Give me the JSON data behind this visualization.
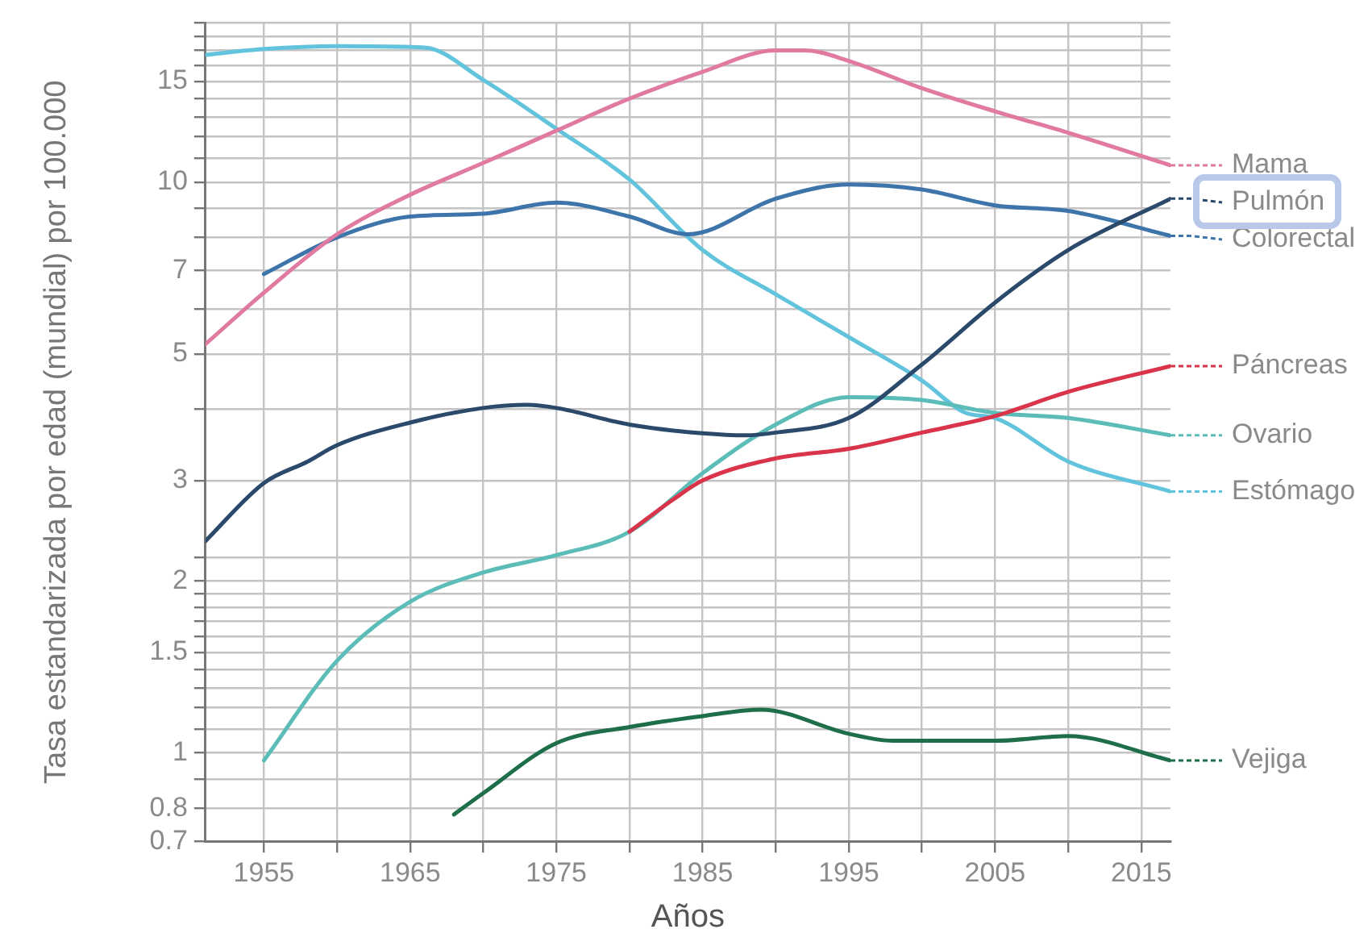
{
  "chart_data": {
    "type": "line",
    "xlabel": "Años",
    "ylabel": "Tasa estandarizada por edad (mundial) por 100.000",
    "log": "y",
    "grid": true,
    "legend": "right",
    "marker": "none",
    "line_style": "solid",
    "xlim": [
      1951,
      2017
    ],
    "xticks": [
      1955,
      {
        "value": 1960,
        "label": null
      },
      1965,
      {
        "value": 1970,
        "label": null
      },
      1975,
      {
        "value": 1980,
        "label": null
      },
      1985,
      {
        "value": 1990,
        "label": null
      },
      1995,
      {
        "value": 2000,
        "label": null
      },
      2005,
      {
        "value": 2010,
        "label": null
      },
      2015
    ],
    "ylim": [
      0.7,
      19
    ],
    "yticks": [
      0.7,
      0.8,
      {
        "value": 0.9,
        "label": null
      },
      1,
      {
        "value": 1.1,
        "label": null
      },
      {
        "value": 1.2,
        "label": null
      },
      {
        "value": 1.3,
        "label": null
      },
      {
        "value": 1.4,
        "label": null
      },
      1.5,
      {
        "value": 1.6,
        "label": null
      },
      {
        "value": 1.7,
        "label": null
      },
      {
        "value": 1.8,
        "label": null
      },
      {
        "value": 1.9,
        "label": null
      },
      2,
      {
        "value": 2.2,
        "label": null
      },
      3,
      {
        "value": 4,
        "label": null
      },
      5,
      {
        "value": 6,
        "label": null
      },
      7,
      {
        "value": 8,
        "label": null
      },
      {
        "value": 9,
        "label": null
      },
      10,
      {
        "value": 11,
        "label": null
      },
      {
        "value": 12,
        "label": null
      },
      {
        "value": 13,
        "label": null
      },
      {
        "value": 14,
        "label": null
      },
      15,
      {
        "value": 16,
        "label": null
      },
      {
        "value": 17,
        "label": null
      },
      {
        "value": 18,
        "label": null
      },
      {
        "value": 19,
        "label": null
      }
    ],
    "series": [
      {
        "name": "Mama",
        "color": "#e07aa0",
        "x": [
          1951,
          1955,
          1960,
          1965,
          1970,
          1975,
          1980,
          1985,
          1990,
          1992,
          1995,
          2000,
          2005,
          2010,
          2017
        ],
        "values": [
          5.2,
          6.4,
          8.1,
          9.5,
          10.8,
          12.3,
          14.0,
          15.6,
          17.0,
          17.0,
          16.3,
          14.6,
          13.3,
          12.2,
          10.7
        ]
      },
      {
        "name": "Pulmón",
        "color": "#2b4a6b",
        "x": [
          1951,
          1955,
          1958,
          1960,
          1965,
          1970,
          1973,
          1975,
          1980,
          1985,
          1988,
          1990,
          1995,
          2000,
          2005,
          2010,
          2017
        ],
        "values": [
          2.35,
          2.97,
          3.24,
          3.46,
          3.79,
          4.02,
          4.07,
          4.02,
          3.76,
          3.63,
          3.6,
          3.64,
          3.86,
          4.79,
          6.15,
          7.6,
          9.35
        ]
      },
      {
        "name": "Colorectal",
        "color": "#3d74aa",
        "x": [
          1955,
          1960,
          1965,
          1970,
          1975,
          1980,
          1984,
          1990,
          1995,
          2000,
          2005,
          2010,
          2017
        ],
        "values": [
          6.9,
          8.0,
          8.7,
          8.8,
          9.2,
          8.7,
          8.1,
          9.35,
          9.9,
          9.7,
          9.1,
          8.9,
          8.05
        ]
      },
      {
        "name": "Páncreas",
        "color": "#d9344a",
        "x": [
          1980,
          1983,
          1985,
          1990,
          1995,
          2000,
          2005,
          2010,
          2017
        ],
        "values": [
          2.44,
          2.78,
          3.0,
          3.28,
          3.41,
          3.64,
          3.89,
          4.29,
          4.76
        ]
      },
      {
        "name": "Ovario",
        "color": "#5bbcb8",
        "x": [
          1955,
          1960,
          1965,
          1970,
          1975,
          1980,
          1985,
          1990,
          1995,
          2000,
          2005,
          2010,
          2017
        ],
        "values": [
          0.97,
          1.45,
          1.84,
          2.07,
          2.22,
          2.44,
          3.09,
          3.76,
          4.2,
          4.15,
          3.94,
          3.86,
          3.6
        ]
      },
      {
        "name": "Estómago",
        "color": "#62c3dd",
        "x": [
          1951,
          1955,
          1960,
          1966,
          1970,
          1975,
          1980,
          1985,
          1990,
          1995,
          2000,
          2003,
          2005,
          2010,
          2017
        ],
        "values": [
          16.7,
          17.1,
          17.3,
          17.2,
          15.1,
          12.4,
          10.1,
          7.6,
          6.36,
          5.35,
          4.49,
          3.94,
          3.86,
          3.24,
          2.87
        ]
      },
      {
        "name": "Vejiga",
        "color": "#1f6e4a",
        "x": [
          1968,
          1970,
          1975,
          1980,
          1985,
          1989,
          1995,
          1998,
          2005,
          2010,
          2017
        ],
        "values": [
          0.78,
          0.85,
          1.04,
          1.11,
          1.16,
          1.19,
          1.08,
          1.05,
          1.05,
          1.07,
          0.97
        ]
      }
    ]
  }
}
